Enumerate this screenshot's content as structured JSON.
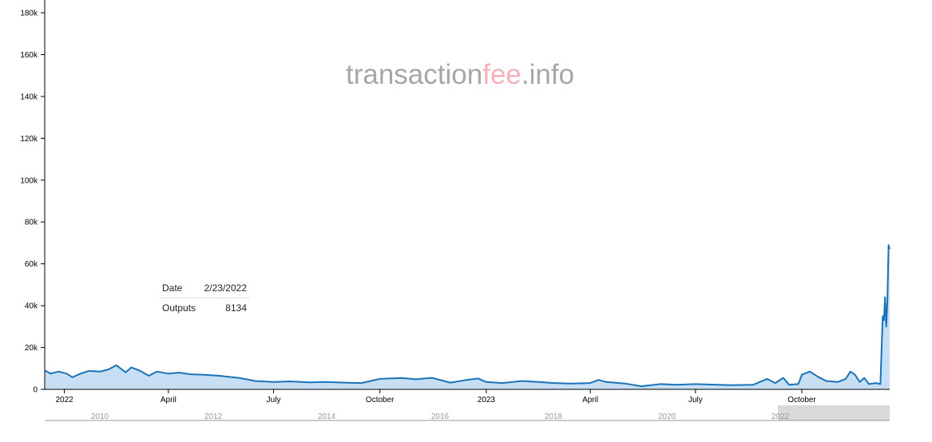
{
  "brand": {
    "prefix": "transaction",
    "accent": "fee",
    "suffix": ".info"
  },
  "tooltip": {
    "date_label": "Date",
    "date_value": "2/23/2022",
    "outputs_label": "Outputs",
    "outputs_value": "8134"
  },
  "colors": {
    "line": "#1a73b8",
    "area": "#c6dff5",
    "navigator_window": "#d9d9d9"
  },
  "chart_data": {
    "type": "area",
    "title": "",
    "xlabel": "",
    "ylabel": "",
    "grid": false,
    "ylim": [
      0,
      180000
    ],
    "yticks": [
      0,
      20000,
      40000,
      60000,
      80000,
      100000,
      120000,
      140000,
      160000,
      180000
    ],
    "ytick_labels": [
      "0",
      "20k",
      "40k",
      "60k",
      "80k",
      "100k",
      "120k",
      "140k",
      "160k",
      "180k"
    ],
    "xlim": [
      "2021-12-15",
      "2023-12-16"
    ],
    "xticks": [
      {
        "date": "2022-01-01",
        "label": "2022"
      },
      {
        "date": "2022-04-01",
        "label": "April"
      },
      {
        "date": "2022-07-01",
        "label": "July"
      },
      {
        "date": "2022-10-01",
        "label": "October"
      },
      {
        "date": "2023-01-01",
        "label": "2023"
      },
      {
        "date": "2023-04-01",
        "label": "April"
      },
      {
        "date": "2023-07-01",
        "label": "July"
      },
      {
        "date": "2023-10-01",
        "label": "October"
      }
    ],
    "series": [
      {
        "values": [
          [
            "2021-12-15",
            9000
          ],
          [
            "2021-12-20",
            7500
          ],
          [
            "2021-12-27",
            8500
          ],
          [
            "2022-01-03",
            7500
          ],
          [
            "2022-01-08",
            5800
          ],
          [
            "2022-01-15",
            7500
          ],
          [
            "2022-01-22",
            8800
          ],
          [
            "2022-02-01",
            8500
          ],
          [
            "2022-02-08",
            9500
          ],
          [
            "2022-02-15",
            11500
          ],
          [
            "2022-02-23",
            8134
          ],
          [
            "2022-02-28",
            10500
          ],
          [
            "2022-03-07",
            9000
          ],
          [
            "2022-03-15",
            6500
          ],
          [
            "2022-03-22",
            8500
          ],
          [
            "2022-04-01",
            7500
          ],
          [
            "2022-04-10",
            8000
          ],
          [
            "2022-04-20",
            7200
          ],
          [
            "2022-05-01",
            7000
          ],
          [
            "2022-05-15",
            6500
          ],
          [
            "2022-06-01",
            5500
          ],
          [
            "2022-06-15",
            4000
          ],
          [
            "2022-07-01",
            3500
          ],
          [
            "2022-07-15",
            3800
          ],
          [
            "2022-08-01",
            3300
          ],
          [
            "2022-08-15",
            3500
          ],
          [
            "2022-09-01",
            3200
          ],
          [
            "2022-09-15",
            3000
          ],
          [
            "2022-10-01",
            5000
          ],
          [
            "2022-10-20",
            5400
          ],
          [
            "2022-11-01",
            4800
          ],
          [
            "2022-11-15",
            5500
          ],
          [
            "2022-12-01",
            3200
          ],
          [
            "2022-12-15",
            4500
          ],
          [
            "2022-12-25",
            5200
          ],
          [
            "2023-01-01",
            3500
          ],
          [
            "2023-01-15",
            3000
          ],
          [
            "2023-02-01",
            4000
          ],
          [
            "2023-02-15",
            3500
          ],
          [
            "2023-03-01",
            3000
          ],
          [
            "2023-03-15",
            2800
          ],
          [
            "2023-04-01",
            3000
          ],
          [
            "2023-04-08",
            4500
          ],
          [
            "2023-04-15",
            3500
          ],
          [
            "2023-05-01",
            2800
          ],
          [
            "2023-05-15",
            1500
          ],
          [
            "2023-06-01",
            2500
          ],
          [
            "2023-06-15",
            2200
          ],
          [
            "2023-07-01",
            2500
          ],
          [
            "2023-07-15",
            2300
          ],
          [
            "2023-08-01",
            2000
          ],
          [
            "2023-08-20",
            2200
          ],
          [
            "2023-09-01",
            5000
          ],
          [
            "2023-09-08",
            3000
          ],
          [
            "2023-09-15",
            5500
          ],
          [
            "2023-09-20",
            2200
          ],
          [
            "2023-09-28",
            2500
          ],
          [
            "2023-10-01",
            7000
          ],
          [
            "2023-10-08",
            8500
          ],
          [
            "2023-10-15",
            6000
          ],
          [
            "2023-10-22",
            4000
          ],
          [
            "2023-11-01",
            3500
          ],
          [
            "2023-11-08",
            5000
          ],
          [
            "2023-11-12",
            8500
          ],
          [
            "2023-11-16",
            7000
          ],
          [
            "2023-11-20",
            3500
          ],
          [
            "2023-11-24",
            5500
          ],
          [
            "2023-11-28",
            2500
          ],
          [
            "2023-12-04",
            3000
          ],
          [
            "2023-12-08",
            2500
          ],
          [
            "2023-12-10",
            35000
          ],
          [
            "2023-12-11",
            33000
          ],
          [
            "2023-12-12",
            44000
          ],
          [
            "2023-12-13",
            30000
          ],
          [
            "2023-12-14",
            42000
          ],
          [
            "2023-12-15",
            69000
          ],
          [
            "2023-12-16",
            67000
          ]
        ]
      }
    ]
  },
  "navigator": {
    "labels": [
      "2010",
      "2012",
      "2014",
      "2016",
      "2018",
      "2020",
      "2022"
    ]
  }
}
